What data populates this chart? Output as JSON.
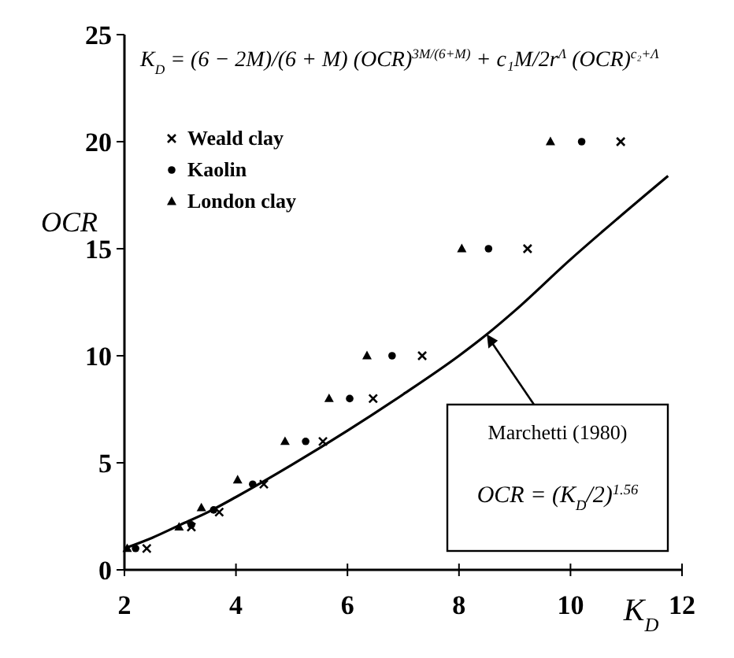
{
  "chart_data": {
    "type": "scatter",
    "xlabel": "K$_{D}$",
    "ylabel": "OCR",
    "xlim": [
      2,
      12
    ],
    "ylim": [
      0,
      25
    ],
    "xticks": [
      2,
      4,
      6,
      8,
      10,
      12
    ],
    "yticks": [
      0,
      5,
      10,
      15,
      20,
      25
    ],
    "grid": false,
    "legend": "top left",
    "series": [
      {
        "name": "Weald clay",
        "color": "#000000",
        "marker": "cross",
        "x": [
          2.4,
          3.2,
          3.7,
          4.5,
          5.56,
          6.46,
          7.34,
          9.23,
          10.9
        ],
        "values": [
          1,
          2,
          2.7,
          4,
          6,
          8,
          10,
          15,
          20
        ]
      },
      {
        "name": "Kaolin",
        "color": "#000000",
        "marker": "circle",
        "x": [
          2.2,
          3.2,
          3.6,
          4.3,
          5.25,
          6.04,
          6.8,
          8.53,
          10.2
        ],
        "values": [
          1,
          2.1,
          2.8,
          4,
          6,
          8,
          10,
          15,
          20
        ]
      },
      {
        "name": "London clay",
        "color": "#000000",
        "marker": "triangle",
        "x": [
          2.05,
          2.98,
          3.38,
          4.03,
          4.88,
          5.67,
          6.35,
          8.05,
          9.64
        ],
        "values": [
          1,
          2,
          2.9,
          4.2,
          6,
          8,
          10,
          15,
          20
        ]
      },
      {
        "type": "line",
        "color": "#000000",
        "marker": "none",
        "line_style": "solid",
        "x": [
          2,
          2.5,
          3,
          3.5,
          4,
          5,
          6,
          7,
          8,
          8.5,
          9,
          10,
          10.84,
          11.75
        ],
        "values": [
          1,
          1.5,
          2.1,
          2.7,
          3.4,
          4.9,
          6.5,
          8.2,
          10,
          11,
          12.1,
          14.5,
          16.4,
          18.4
        ]
      }
    ],
    "annotations": [
      "K$_{D}$ = (6 − 2M)/(6 + M) (OCR)$^{3M/(6+M)}$ + c₁M/2r$^{Λ}$ (OCR)$^{c₂+Λ}$",
      {
        "text": "Marchetti (1980)",
        "x": 8.5,
        "y": 11
      },
      "OCR = (K$_{D}$/2)$^{1.56}$"
    ]
  }
}
